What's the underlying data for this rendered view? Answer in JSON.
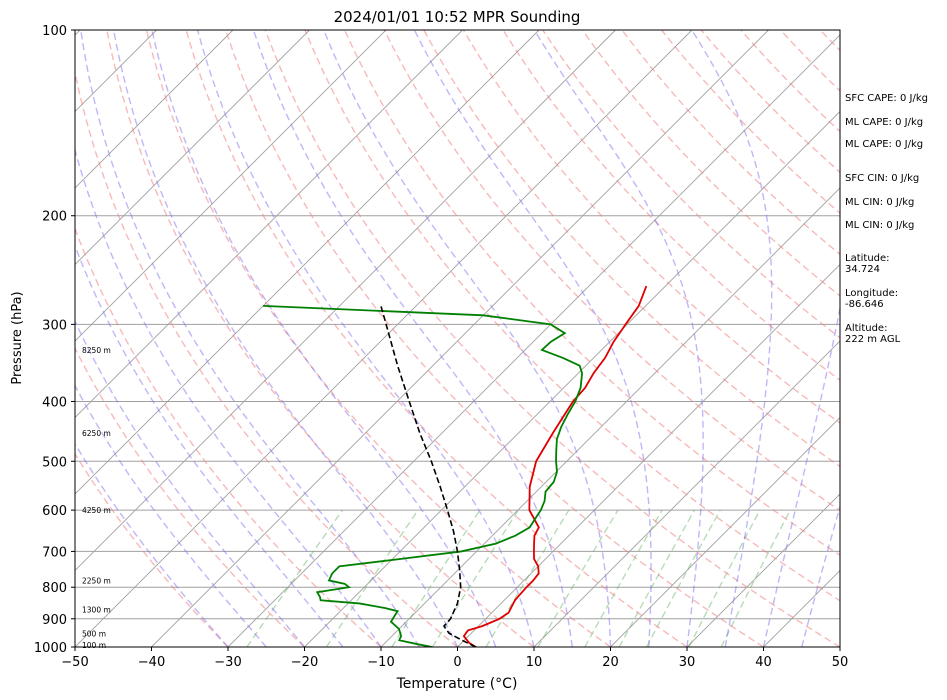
{
  "chart_data": {
    "type": "skew-t",
    "title": "2024/01/01 10:52 MPR Sounding",
    "xlabel": "Temperature (°C)",
    "ylabel": "Pressure (hPa)",
    "xlim": [
      -50,
      50
    ],
    "ylim": [
      1000,
      100
    ],
    "y_scale": "log",
    "x_ticks": [
      -50,
      -40,
      -30,
      -20,
      -10,
      0,
      10,
      20,
      30,
      40,
      50
    ],
    "x_tick_labels": [
      "−50",
      "−40",
      "−30",
      "−20",
      "−10",
      "0",
      "10",
      "20",
      "30",
      "40",
      "50"
    ],
    "y_ticks": [
      1000,
      900,
      800,
      700,
      600,
      500,
      400,
      300,
      200,
      100
    ],
    "y_tick_labels": [
      "1000",
      "900",
      "800",
      "700",
      "600",
      "500",
      "400",
      "300",
      "200",
      "100"
    ],
    "grid": true,
    "colors": {
      "temperature": "#e00000",
      "dewpoint": "#008000",
      "parcel": "#000000",
      "isotherm": "#a0a0a0",
      "dry_adiabat": "#f08080",
      "moist_adiabat": "#8070f0",
      "mixing_ratio": "#60b060"
    },
    "series": [
      {
        "role": "temperature",
        "pressure": [
          1000,
          985,
          960,
          940,
          925,
          900,
          880,
          860,
          840,
          820,
          800,
          780,
          760,
          740,
          720,
          700,
          680,
          660,
          640,
          600,
          550,
          500,
          450,
          400,
          380,
          360,
          340,
          320,
          300,
          280,
          260
        ],
        "values": [
          2.4,
          1.0,
          -0.6,
          -0.8,
          0.5,
          1.8,
          2.2,
          1.8,
          1.4,
          1.3,
          1.2,
          1.2,
          1.0,
          0.0,
          -1.5,
          -2.5,
          -3.5,
          -4.5,
          -5.0,
          -8.5,
          -11.5,
          -14.0,
          -15.5,
          -17.0,
          -17.2,
          -18.0,
          -18.5,
          -19.5,
          -20.2,
          -20.9,
          -22.5
        ]
      },
      {
        "role": "dewpoint",
        "pressure": [
          1000,
          990,
          975,
          960,
          935,
          910,
          890,
          875,
          865,
          850,
          840,
          830,
          815,
          800,
          790,
          780,
          760,
          740,
          720,
          700,
          680,
          660,
          640,
          620,
          600,
          580,
          560,
          540,
          520,
          500,
          480,
          460,
          440,
          420,
          400,
          380,
          360,
          350,
          340,
          330,
          320,
          310,
          300,
          290,
          280
        ],
        "values": [
          -3.3,
          -5.5,
          -8.5,
          -8.8,
          -10.0,
          -12.0,
          -12.3,
          -12.5,
          -14.5,
          -18.5,
          -24.0,
          -24.5,
          -25.5,
          -22.0,
          -23.0,
          -25.5,
          -26.0,
          -26.0,
          -19.0,
          -12.0,
          -8.5,
          -7.0,
          -6.2,
          -6.6,
          -7.0,
          -7.7,
          -8.8,
          -9.0,
          -9.9,
          -11.4,
          -12.8,
          -14.2,
          -15.2,
          -16.0,
          -16.7,
          -17.8,
          -19.5,
          -20.8,
          -24.0,
          -27.8,
          -27.7,
          -27.0,
          -30.0,
          -40.0,
          -70.0
        ]
      },
      {
        "role": "parcel",
        "pressure": [
          1000,
          975,
          950,
          925,
          900,
          850,
          800,
          750,
          700,
          650,
          600,
          550,
          500,
          450,
          400,
          350,
          300,
          280
        ],
        "values": [
          2.4,
          -0.3,
          -2.9,
          -4.5,
          -4.6,
          -5.7,
          -7.4,
          -9.8,
          -12.5,
          -15.6,
          -19.2,
          -23.2,
          -27.7,
          -32.9,
          -38.4,
          -44.6,
          -51.5,
          -54.6
        ]
      }
    ],
    "height_labels": [
      "100 m",
      "500 m",
      "1300 m",
      "2250 m",
      "4250 m",
      "6250 m",
      "8250 m"
    ],
    "height_label_pressures": [
      993,
      950,
      870,
      780,
      600,
      450,
      330
    ]
  },
  "stats": {
    "sfc_cape": "SFC CAPE: 0 J/kg",
    "ml_cape_1": "ML CAPE: 0 J/kg",
    "ml_cape_2": "ML CAPE: 0 J/kg",
    "sfc_cin": "SFC CIN: 0 J/kg",
    "ml_cin_1": "ML CIN: 0 J/kg",
    "ml_cin_2": "ML CIN: 0 J/kg",
    "latitude_label": "Latitude:",
    "latitude_value": "34.724",
    "longitude_label": "Longitude:",
    "longitude_value": "-86.646",
    "altitude_label": "Altitude:",
    "altitude_value": "222 m AGL"
  }
}
